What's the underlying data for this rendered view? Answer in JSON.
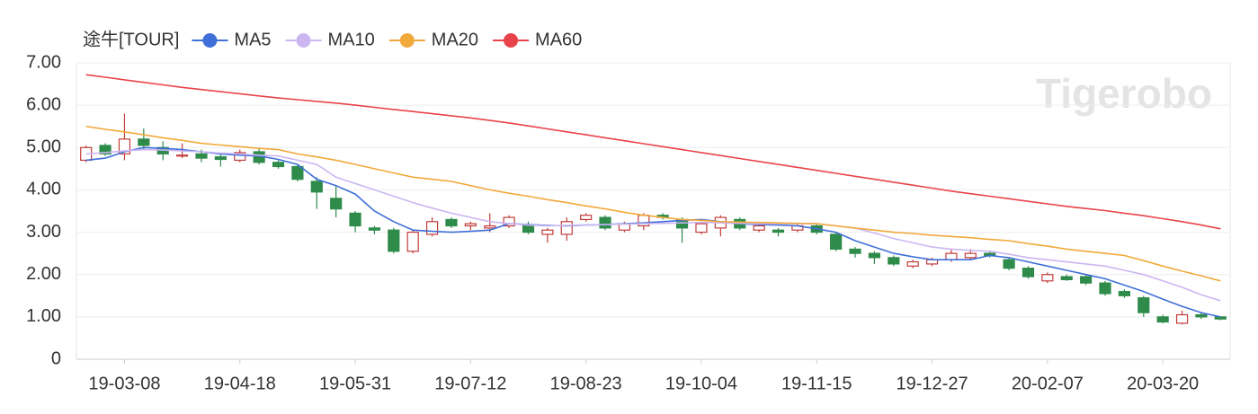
{
  "chart_data": {
    "type": "candlestick",
    "watermark": "Tigerobo",
    "categories": [
      null,
      null,
      "19-03-08",
      null,
      null,
      null,
      null,
      null,
      "19-04-18",
      null,
      null,
      null,
      null,
      null,
      "19-05-31",
      null,
      null,
      null,
      null,
      null,
      "19-07-12",
      null,
      null,
      null,
      null,
      null,
      "19-08-23",
      null,
      null,
      null,
      null,
      null,
      "19-10-04",
      null,
      null,
      null,
      null,
      null,
      "19-11-15",
      null,
      null,
      null,
      null,
      null,
      "19-12-27",
      null,
      null,
      null,
      null,
      null,
      "20-02-07",
      null,
      null,
      null,
      null,
      null,
      "20-03-20",
      null,
      null,
      null
    ],
    "candles": {
      "name": "途牛[TOUR]",
      "up_color": "#c23b3b",
      "down_color": "#2e8b4a",
      "open": [
        4.7,
        5.05,
        4.85,
        5.2,
        5.0,
        4.8,
        4.85,
        4.78,
        4.7,
        4.9,
        4.65,
        4.55,
        4.2,
        3.8,
        3.45,
        3.1,
        3.05,
        2.55,
        2.95,
        3.3,
        3.15,
        3.1,
        3.15,
        3.15,
        2.95,
        2.95,
        3.3,
        3.35,
        3.05,
        3.15,
        3.4,
        3.3,
        3.0,
        3.1,
        3.3,
        3.05,
        3.05,
        3.05,
        3.15,
        2.95,
        2.6,
        2.5,
        2.4,
        2.2,
        2.25,
        2.35,
        2.4,
        2.5,
        2.35,
        2.15,
        1.85,
        1.95,
        1.95,
        1.8,
        1.6,
        1.45,
        1.0,
        0.85,
        1.05,
        1.0
      ],
      "high": [
        5.05,
        5.1,
        5.8,
        5.45,
        5.15,
        5.1,
        4.95,
        4.85,
        4.95,
        5.0,
        4.7,
        4.6,
        4.3,
        4.1,
        3.5,
        3.15,
        3.1,
        3.05,
        3.35,
        3.35,
        3.25,
        3.45,
        3.4,
        3.25,
        3.1,
        3.35,
        3.45,
        3.4,
        3.25,
        3.45,
        3.45,
        3.35,
        3.25,
        3.4,
        3.35,
        3.2,
        3.1,
        3.2,
        3.2,
        3.0,
        2.65,
        2.55,
        2.45,
        2.35,
        2.4,
        2.6,
        2.6,
        2.55,
        2.4,
        2.2,
        2.05,
        2.0,
        2.0,
        1.85,
        1.65,
        1.5,
        1.05,
        1.15,
        1.1,
        1.0
      ],
      "low": [
        4.65,
        4.8,
        4.7,
        4.95,
        4.7,
        4.75,
        4.65,
        4.55,
        4.65,
        4.6,
        4.5,
        4.2,
        3.55,
        3.35,
        3.0,
        2.95,
        2.5,
        2.5,
        2.9,
        3.1,
        3.05,
        3.0,
        3.1,
        2.95,
        2.75,
        2.8,
        3.25,
        3.05,
        3.0,
        3.05,
        3.3,
        2.75,
        2.95,
        2.9,
        3.05,
        3.0,
        2.9,
        3.0,
        2.95,
        2.55,
        2.4,
        2.25,
        2.2,
        2.15,
        2.2,
        2.3,
        2.35,
        2.4,
        2.1,
        1.9,
        1.8,
        1.85,
        1.75,
        1.5,
        1.45,
        1.0,
        0.85,
        0.82,
        0.95,
        0.92
      ],
      "close": [
        5.0,
        4.85,
        5.2,
        5.05,
        4.85,
        4.82,
        4.75,
        4.72,
        4.88,
        4.65,
        4.55,
        4.25,
        3.95,
        3.55,
        3.15,
        3.05,
        2.55,
        3.0,
        3.25,
        3.15,
        3.2,
        3.15,
        3.35,
        3.0,
        3.05,
        3.25,
        3.4,
        3.1,
        3.2,
        3.4,
        3.35,
        3.1,
        3.2,
        3.35,
        3.1,
        3.15,
        3.0,
        3.15,
        3.0,
        2.6,
        2.5,
        2.4,
        2.25,
        2.3,
        2.35,
        2.5,
        2.5,
        2.45,
        2.15,
        1.95,
        2.0,
        1.88,
        1.8,
        1.55,
        1.5,
        1.1,
        0.88,
        1.05,
        1.0,
        0.95
      ]
    },
    "series": [
      {
        "name": "MA5",
        "color": "#3f6fd8",
        "values": [
          4.7,
          4.75,
          4.9,
          5.0,
          4.98,
          4.95,
          4.9,
          4.85,
          4.82,
          4.8,
          4.72,
          4.6,
          4.25,
          4.1,
          3.9,
          3.5,
          3.25,
          3.05,
          3.02,
          3.0,
          3.02,
          3.05,
          3.2,
          3.18,
          3.16,
          3.15,
          3.17,
          3.18,
          3.2,
          3.22,
          3.25,
          3.28,
          3.3,
          3.25,
          3.2,
          3.18,
          3.17,
          3.15,
          3.08,
          3.0,
          2.8,
          2.65,
          2.5,
          2.42,
          2.35,
          2.35,
          2.35,
          2.45,
          2.4,
          2.3,
          2.2,
          2.1,
          2.0,
          1.9,
          1.75,
          1.6,
          1.42,
          1.25,
          1.1,
          1.0
        ]
      },
      {
        "name": "MA10",
        "color": "#cbb6f2",
        "values": [
          4.85,
          4.88,
          4.92,
          4.95,
          4.94,
          4.92,
          4.9,
          4.87,
          4.85,
          4.82,
          4.8,
          4.7,
          4.6,
          4.3,
          4.15,
          4.0,
          3.85,
          3.7,
          3.57,
          3.45,
          3.35,
          3.25,
          3.2,
          3.17,
          3.15,
          3.16,
          3.17,
          3.18,
          3.19,
          3.2,
          3.21,
          3.22,
          3.23,
          3.22,
          3.21,
          3.2,
          3.2,
          3.2,
          3.2,
          3.15,
          3.1,
          2.98,
          2.85,
          2.75,
          2.65,
          2.6,
          2.57,
          2.55,
          2.48,
          2.4,
          2.35,
          2.3,
          2.25,
          2.2,
          2.1,
          2.0,
          1.85,
          1.7,
          1.52,
          1.38
        ]
      },
      {
        "name": "MA20",
        "color": "#f2a93b",
        "values": [
          5.5,
          5.43,
          5.37,
          5.3,
          5.23,
          5.17,
          5.1,
          5.06,
          5.02,
          4.98,
          4.95,
          4.85,
          4.78,
          4.7,
          4.6,
          4.5,
          4.4,
          4.3,
          4.25,
          4.2,
          4.1,
          4.0,
          3.92,
          3.85,
          3.77,
          3.7,
          3.62,
          3.55,
          3.47,
          3.4,
          3.35,
          3.3,
          3.28,
          3.25,
          3.24,
          3.23,
          3.22,
          3.21,
          3.2,
          3.15,
          3.1,
          3.05,
          3.0,
          2.97,
          2.93,
          2.9,
          2.87,
          2.83,
          2.8,
          2.73,
          2.67,
          2.6,
          2.55,
          2.5,
          2.45,
          2.33,
          2.2,
          2.08,
          1.97,
          1.85
        ]
      },
      {
        "name": "MA60",
        "color": "#e8434a",
        "values": [
          6.72,
          6.66,
          6.6,
          6.54,
          6.48,
          6.42,
          6.37,
          6.32,
          6.27,
          6.22,
          6.17,
          6.13,
          6.09,
          6.05,
          6.0,
          5.95,
          5.9,
          5.85,
          5.8,
          5.75,
          5.7,
          5.64,
          5.58,
          5.51,
          5.44,
          5.37,
          5.3,
          5.23,
          5.16,
          5.09,
          5.02,
          4.95,
          4.88,
          4.81,
          4.74,
          4.67,
          4.6,
          4.53,
          4.46,
          4.39,
          4.32,
          4.25,
          4.18,
          4.11,
          4.04,
          3.97,
          3.91,
          3.85,
          3.79,
          3.73,
          3.67,
          3.61,
          3.56,
          3.51,
          3.45,
          3.39,
          3.32,
          3.25,
          3.17,
          3.08
        ]
      }
    ],
    "ylim": [
      0,
      7
    ],
    "yticks": [
      0,
      {
        "value": 1,
        "label": "1.00"
      },
      {
        "value": 2,
        "label": "2.00"
      },
      {
        "value": 3,
        "label": "3.00"
      },
      {
        "value": 4,
        "label": "4.00"
      },
      {
        "value": 5,
        "label": "5.00"
      },
      {
        "value": 6,
        "label": "6.00"
      },
      {
        "value": 7,
        "label": "7.00"
      }
    ],
    "grid": true
  }
}
